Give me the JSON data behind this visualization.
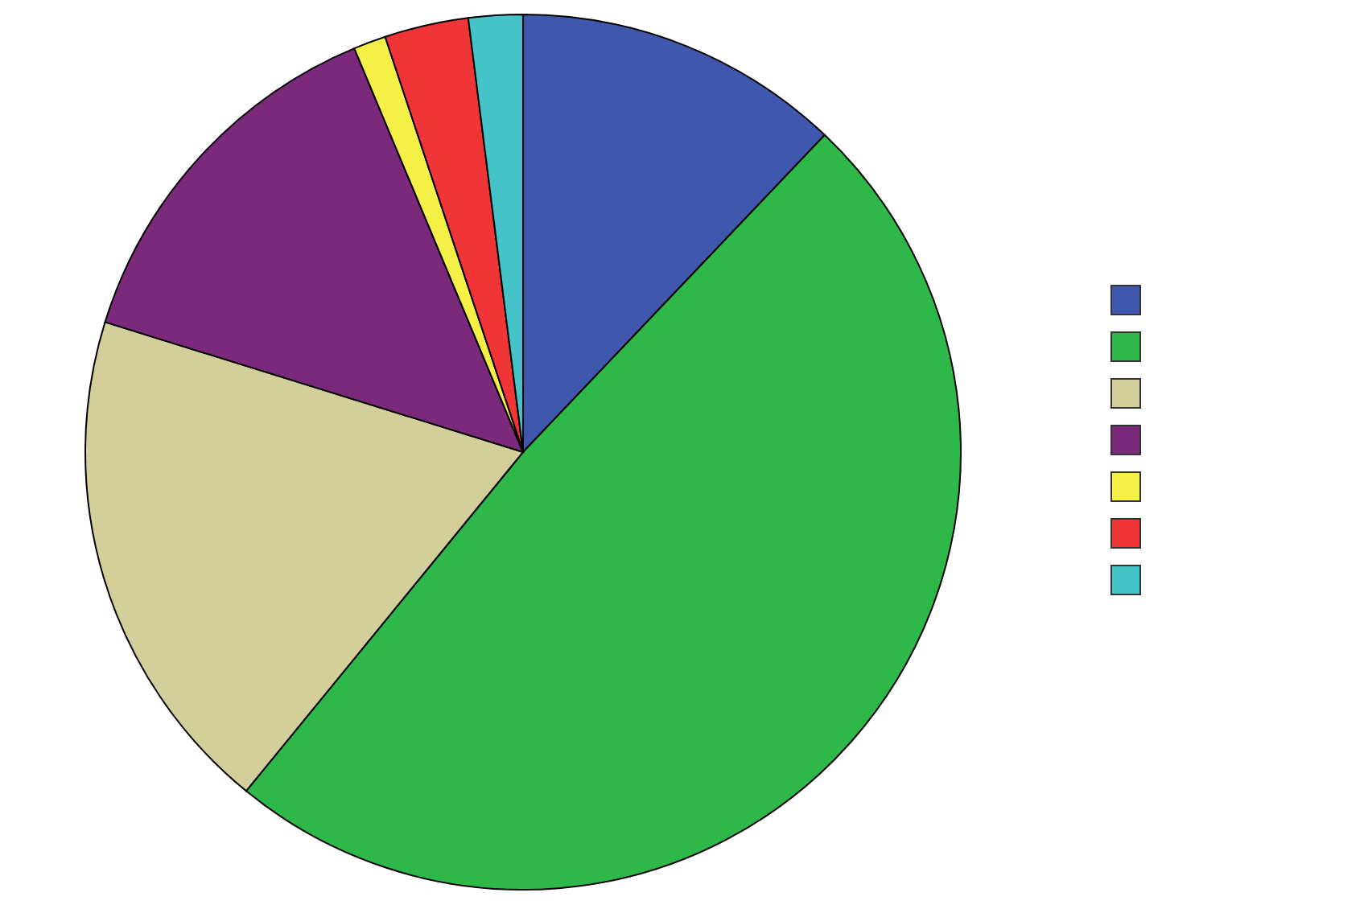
{
  "chart_data": {
    "type": "pie",
    "categories": [
      null,
      null,
      null,
      null,
      null,
      null,
      null
    ],
    "values": [
      12.1,
      48.8,
      18.9,
      13.9,
      1.2,
      3.1,
      2.0
    ],
    "colors": [
      "#3f58ad",
      "#2eb84a",
      "#d4ce9a",
      "#7b2a7b",
      "#f5f045",
      "#ef3535",
      "#45c3c8"
    ]
  }
}
